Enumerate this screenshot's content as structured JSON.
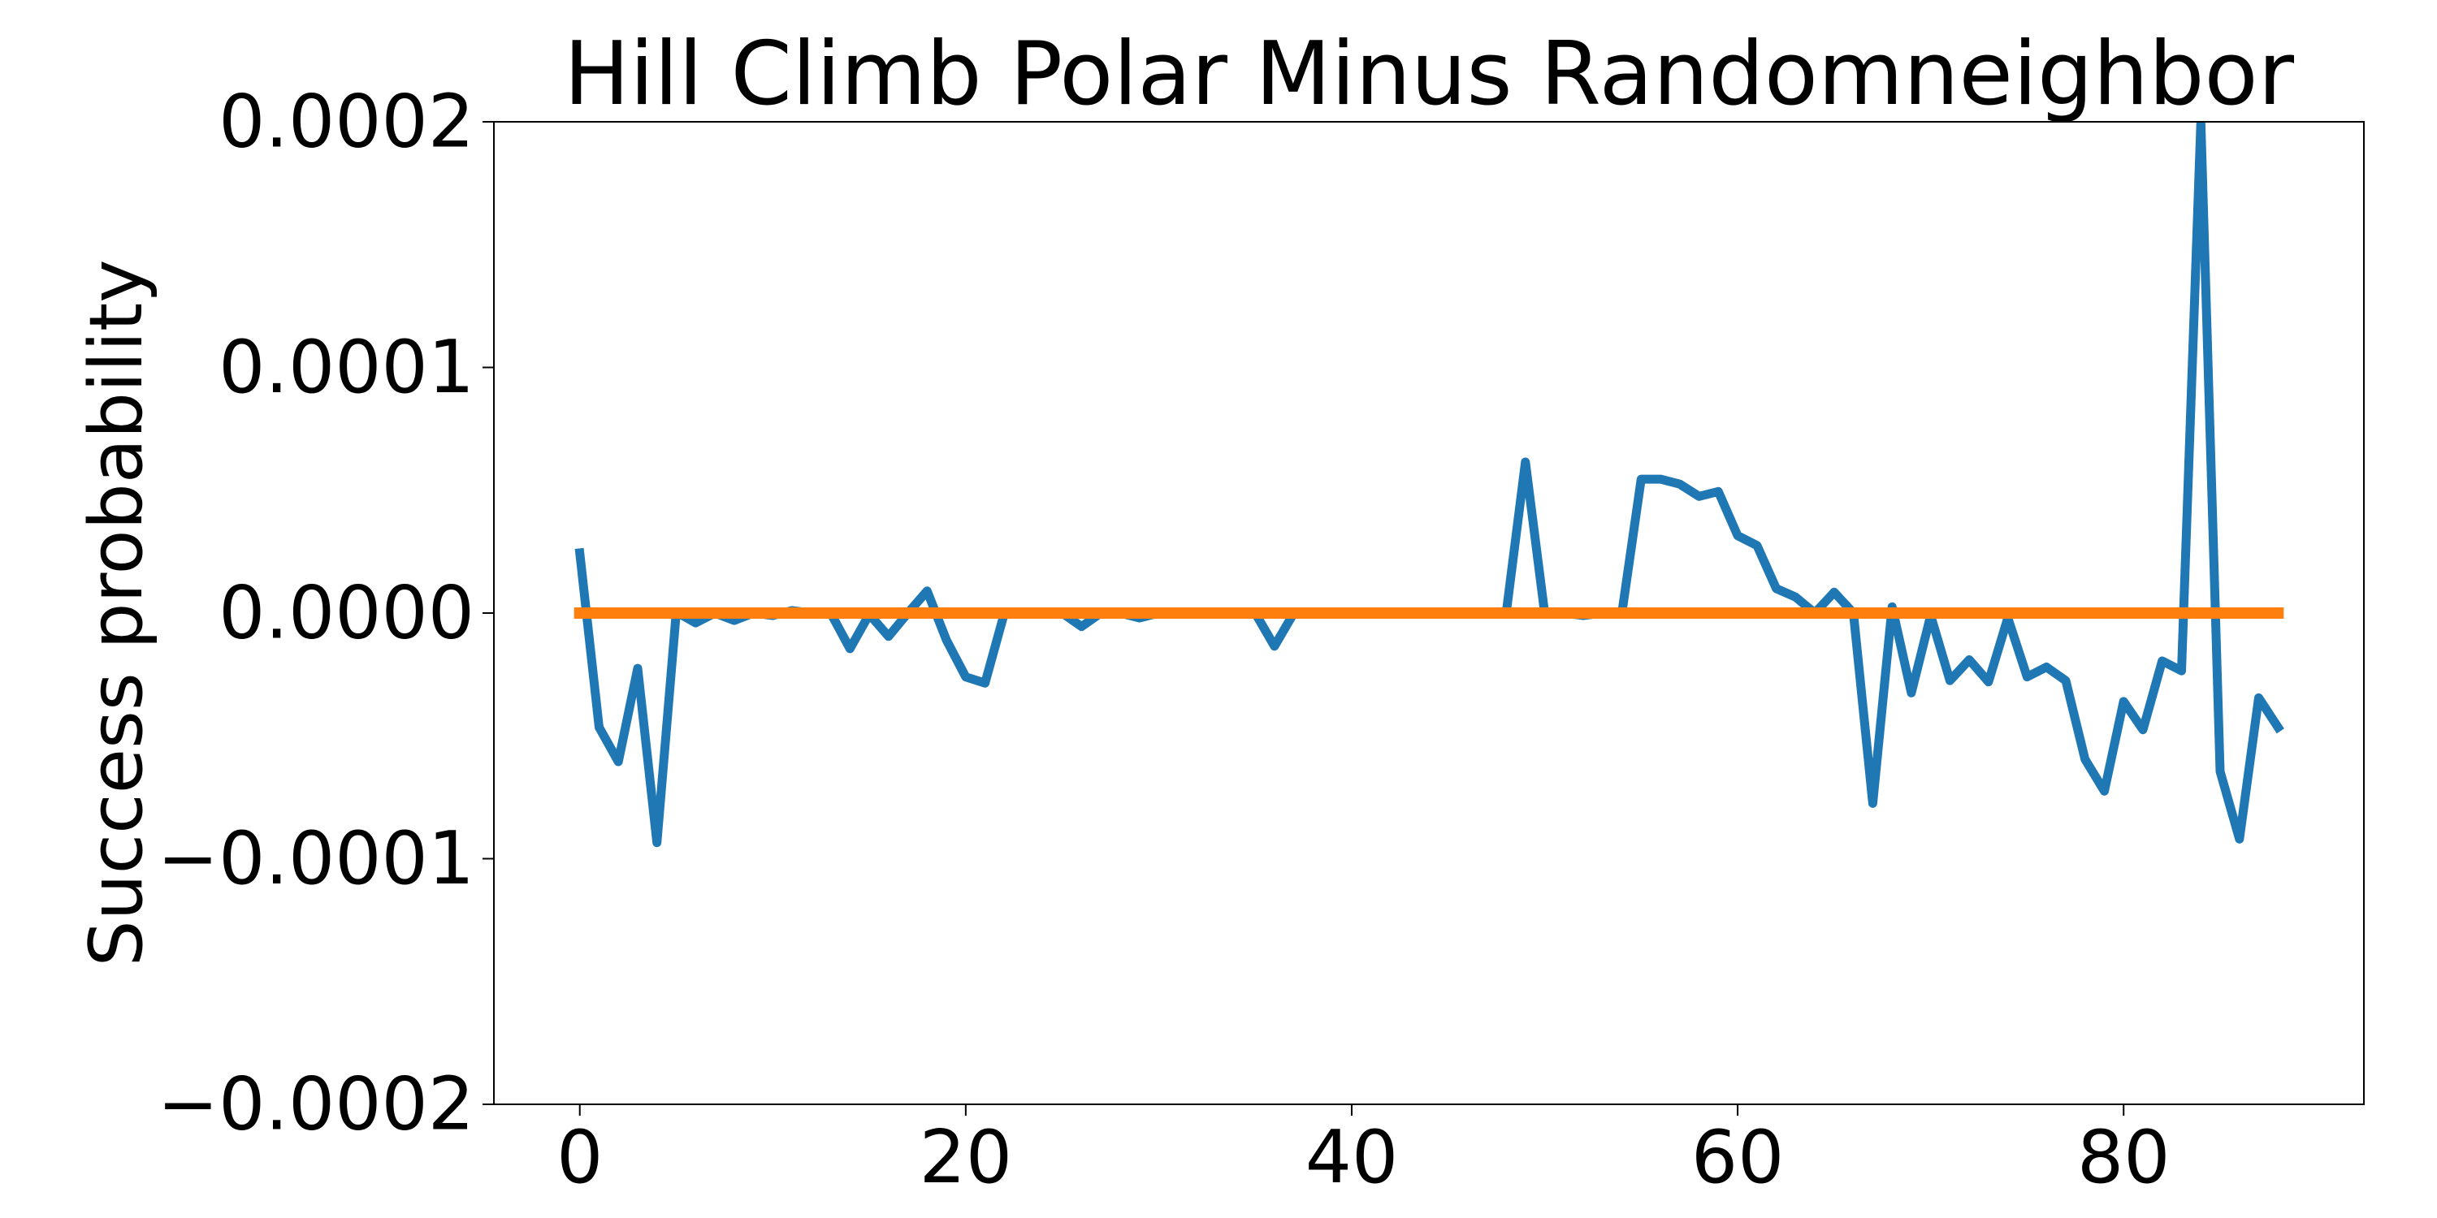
{
  "chart_data": {
    "type": "line",
    "title": "Hill Climb Polar Minus Randomneighbor",
    "xlabel": "",
    "ylabel": "Success probability",
    "xlim": [
      -4.45,
      92.45
    ],
    "ylim": [
      -0.0002,
      0.0002
    ],
    "xticks": [
      0,
      20,
      40,
      60,
      80
    ],
    "xtick_labels": [
      "0",
      "20",
      "40",
      "60",
      "80"
    ],
    "yticks": [
      -0.0002,
      -0.0001,
      0,
      0.0001,
      0.0002
    ],
    "ytick_labels": [
      "−0.0002",
      "−0.0001",
      "0.0000",
      "0.0001",
      "0.0002"
    ],
    "grid": false,
    "legend": "none",
    "series": [
      {
        "color": "#1f77b4",
        "x": [
          0,
          1,
          2,
          3,
          4,
          5,
          6,
          7,
          8,
          9,
          10,
          11,
          12,
          13,
          14,
          15,
          16,
          17,
          18,
          19,
          20,
          21,
          22,
          23,
          24,
          25,
          26,
          27,
          28,
          29,
          30,
          31,
          32,
          33,
          34,
          35,
          36,
          37,
          38,
          39,
          40,
          41,
          42,
          43,
          44,
          45,
          46,
          47,
          48,
          49,
          50,
          51,
          52,
          53,
          54,
          55,
          56,
          57,
          58,
          59,
          60,
          61,
          62,
          63,
          64,
          65,
          66,
          67,
          68,
          69,
          70,
          71,
          72,
          73,
          74,
          75,
          76,
          77,
          78,
          79,
          80,
          81,
          82,
          83,
          84,
          85,
          86,
          87,
          88
        ],
        "y": [
          2.45e-05,
          -4.65e-05,
          -6.05e-05,
          -2.25e-05,
          -9.35e-05,
          5e-07,
          -4e-06,
          0.0,
          -3e-06,
          0.0,
          -1e-06,
          1e-06,
          0.0,
          0.0,
          -1.45e-05,
          -5e-07,
          -9.5e-06,
          0.0,
          9e-06,
          -1.1e-05,
          -2.6e-05,
          -2.85e-05,
          0.0,
          0.0,
          0.0,
          0.0,
          -5.5e-06,
          0.0,
          0.0,
          -2e-06,
          0.0,
          0.0,
          0.0,
          0.0,
          0.0,
          0.0,
          -1.35e-05,
          0.0,
          0.0,
          0.0,
          -5e-07,
          5e-07,
          0.0,
          -5e-07,
          -5e-07,
          0.0,
          0.0,
          -5e-07,
          -5e-07,
          6.15e-05,
          0.0,
          0.0,
          -1e-06,
          0.0,
          0.0,
          5.45e-05,
          5.45e-05,
          5.25e-05,
          4.75e-05,
          4.95e-05,
          3.15e-05,
          2.75e-05,
          1e-05,
          6.5e-06,
          0.0,
          8.5e-06,
          0.0,
          -7.75e-05,
          2.5e-06,
          -3.25e-05,
          -1e-06,
          -2.75e-05,
          -1.9e-05,
          -2.8e-05,
          -2e-06,
          -2.6e-05,
          -2.2e-05,
          -2.75e-05,
          -5.95e-05,
          -7.25e-05,
          -3.6e-05,
          -4.75e-05,
          -1.95e-05,
          -2.35e-05,
          0.0002,
          -6.45e-05,
          -9.2e-05,
          -3.45e-05,
          -4.65e-05
        ]
      },
      {
        "color": "#ff7f0e",
        "x": [
          0,
          88
        ],
        "y": [
          0.0,
          0.0
        ]
      }
    ]
  }
}
